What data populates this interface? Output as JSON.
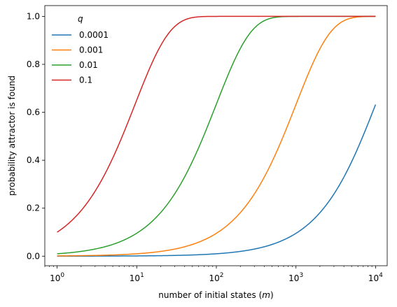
{
  "chart_data": {
    "type": "line",
    "xlabel_main": "number of initial states (",
    "xlabel_var": "m",
    "xlabel_end": ")",
    "ylabel": "probability attractor is found",
    "xscale": "log",
    "xlim": [
      0.7,
      14000
    ],
    "ylim": [
      -0.04,
      1.045
    ],
    "x_range": [
      1,
      10000
    ],
    "grid": false,
    "legend": {
      "title": "q",
      "placement": "top-left"
    },
    "x_ticks": [
      {
        "value": 1,
        "base": "10",
        "exp": "0"
      },
      {
        "value": 10,
        "base": "10",
        "exp": "1"
      },
      {
        "value": 100,
        "base": "10",
        "exp": "2"
      },
      {
        "value": 1000,
        "base": "10",
        "exp": "3"
      },
      {
        "value": 10000,
        "base": "10",
        "exp": "4"
      }
    ],
    "y_ticks": [
      {
        "value": 0.0,
        "label": "0.0"
      },
      {
        "value": 0.2,
        "label": "0.2"
      },
      {
        "value": 0.4,
        "label": "0.4"
      },
      {
        "value": 0.6,
        "label": "0.6"
      },
      {
        "value": 0.8,
        "label": "0.8"
      },
      {
        "value": 1.0,
        "label": "1.0"
      }
    ],
    "formula": "1 - (1 - q)^m",
    "series": [
      {
        "name": "0.0001",
        "q": 0.0001,
        "color": "#1f77b4"
      },
      {
        "name": "0.001",
        "q": 0.001,
        "color": "#ff7f0e"
      },
      {
        "name": "0.01",
        "q": 0.01,
        "color": "#2ca02c"
      },
      {
        "name": "0.1",
        "q": 0.1,
        "color": "#d62728"
      }
    ]
  }
}
